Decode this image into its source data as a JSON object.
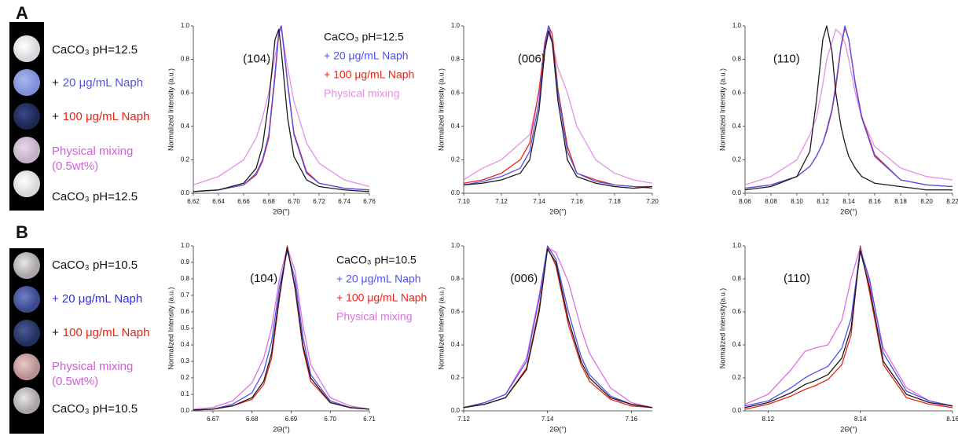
{
  "rows": [
    {
      "letter": "A",
      "samples": [
        {
          "lines": [
            "CaCO₃ pH=12.5"
          ]
        },
        {
          "prefix": "+",
          "lines": [
            "20 μg/mL Naph"
          ]
        },
        {
          "prefix": "+",
          "lines": [
            "100 μg/mL Naph"
          ]
        },
        {
          "lines": [
            "Physical mixing",
            "(0.5wt%)"
          ]
        },
        {
          "lines": [
            "CaCO₃ pH=12.5"
          ]
        }
      ]
    },
    {
      "letter": "B",
      "samples": [
        {
          "lines": [
            "CaCO₃ pH=10.5"
          ]
        },
        {
          "lines": [
            "+ 20 μg/mL Naph"
          ]
        },
        {
          "prefix": "+",
          "lines": [
            "100 μg/mL Naph"
          ]
        },
        {
          "lines": [
            "Physical mixing",
            "(0.5wt%)"
          ]
        },
        {
          "lines": [
            "CaCO₃ pH=10.5"
          ]
        }
      ]
    }
  ],
  "chart_data": [
    {
      "type": "line",
      "annotation": "(104)",
      "x_label": "2Θ(°)",
      "y_label": "Normalized Intensity (a.u.)",
      "xlim": [
        6.62,
        6.76
      ],
      "xticks": [
        6.62,
        6.64,
        6.66,
        6.68,
        {
          "value": 6.7,
          "label": "6.70"
        },
        6.72,
        6.74,
        6.76
      ],
      "ylim": [
        0,
        1
      ],
      "yticks": [
        {
          "value": 0,
          "label": "0.0"
        },
        0.2,
        0.4,
        0.6,
        0.8,
        {
          "value": 1,
          "label": "1.0"
        }
      ],
      "x": [
        6.62,
        6.64,
        6.66,
        6.67,
        6.675,
        6.68,
        6.685,
        6.688,
        6.69,
        6.695,
        6.7,
        6.71,
        6.72,
        6.74,
        6.76
      ],
      "series": [
        {
          "name": "CaCO₃ pH=12.5",
          "color": "#1a1a1a",
          "values": [
            0.01,
            0.02,
            0.06,
            0.15,
            0.28,
            0.55,
            0.92,
            0.98,
            0.85,
            0.45,
            0.22,
            0.08,
            0.04,
            0.02,
            0.01
          ]
        },
        {
          "name": "+ 20 μg/mL Naph",
          "color": "#5050f0",
          "values": [
            0.01,
            0.02,
            0.05,
            0.12,
            0.2,
            0.35,
            0.72,
            0.97,
            1.0,
            0.65,
            0.35,
            0.12,
            0.06,
            0.03,
            0.02
          ]
        },
        {
          "name": "+ 100 μg/mL Naph",
          "color": "#e82318",
          "values": [
            0.01,
            0.02,
            0.05,
            0.11,
            0.19,
            0.33,
            0.7,
            0.96,
            1.0,
            0.66,
            0.36,
            0.13,
            0.06,
            0.03,
            0.02
          ]
        },
        {
          "name": "Physical mixing",
          "color": "#e590e8",
          "values": [
            0.05,
            0.1,
            0.2,
            0.33,
            0.45,
            0.6,
            0.82,
            0.95,
            0.98,
            0.75,
            0.55,
            0.3,
            0.18,
            0.08,
            0.04
          ]
        }
      ]
    },
    {
      "type": "line",
      "annotation": "(006)",
      "x_label": "2Θ(°)",
      "y_label": "Normalized Intensity (a.u.)",
      "xlim": [
        7.1,
        7.2
      ],
      "xticks": [
        {
          "value": 7.1,
          "label": "7.10"
        },
        7.12,
        7.14,
        7.16,
        7.18,
        {
          "value": 7.2,
          "label": "7.20"
        }
      ],
      "ylim": [
        0,
        1
      ],
      "yticks": [
        {
          "value": 0,
          "label": "0.0"
        },
        0.2,
        0.4,
        0.6,
        0.8,
        {
          "value": 1,
          "label": "1.0"
        }
      ],
      "x": [
        7.1,
        7.11,
        7.12,
        7.13,
        7.135,
        7.14,
        7.143,
        7.145,
        7.147,
        7.15,
        7.155,
        7.16,
        7.17,
        7.18,
        7.19,
        7.2
      ],
      "series": [
        {
          "color": "#1a1a1a",
          "values": [
            0.05,
            0.06,
            0.08,
            0.12,
            0.2,
            0.5,
            0.85,
            0.97,
            0.9,
            0.55,
            0.2,
            0.1,
            0.06,
            0.04,
            0.03,
            0.04
          ]
        },
        {
          "color": "#5050f0",
          "values": [
            0.05,
            0.07,
            0.1,
            0.15,
            0.25,
            0.55,
            0.88,
            1.0,
            0.9,
            0.6,
            0.25,
            0.12,
            0.07,
            0.05,
            0.04,
            0.04
          ]
        },
        {
          "color": "#e82318",
          "values": [
            0.06,
            0.08,
            0.12,
            0.2,
            0.3,
            0.62,
            0.9,
            1.0,
            0.95,
            0.62,
            0.28,
            0.12,
            0.08,
            0.05,
            0.04,
            0.03
          ]
        },
        {
          "color": "#e590e8",
          "values": [
            0.08,
            0.15,
            0.2,
            0.3,
            0.35,
            0.6,
            0.85,
            0.95,
            0.9,
            0.75,
            0.6,
            0.4,
            0.2,
            0.12,
            0.08,
            0.06
          ]
        }
      ]
    },
    {
      "type": "line",
      "annotation": "(110)",
      "x_label": "2Θ(°)",
      "y_label": "Normalized Intensity (a.u.)",
      "xlim": [
        8.06,
        8.22
      ],
      "xticks": [
        8.06,
        8.08,
        {
          "value": 8.1,
          "label": "8.10"
        },
        8.12,
        8.14,
        8.16,
        8.18,
        {
          "value": 8.2,
          "label": "8.20"
        },
        8.22
      ],
      "ylim": [
        0,
        1
      ],
      "yticks": [
        {
          "value": 0,
          "label": "0.0"
        },
        0.2,
        0.4,
        0.6,
        0.8,
        {
          "value": 1,
          "label": "1.0"
        }
      ],
      "x": [
        8.06,
        8.08,
        8.1,
        8.11,
        8.115,
        8.12,
        8.123,
        8.127,
        8.13,
        8.134,
        8.137,
        8.14,
        8.145,
        8.15,
        8.16,
        8.18,
        8.2,
        8.22
      ],
      "series": [
        {
          "color": "#1a1a1a",
          "values": [
            0.02,
            0.04,
            0.1,
            0.25,
            0.55,
            0.92,
            1.0,
            0.85,
            0.6,
            0.4,
            0.3,
            0.22,
            0.15,
            0.1,
            0.06,
            0.04,
            0.02,
            0.02
          ]
        },
        {
          "color": "#5050f0",
          "values": [
            0.03,
            0.05,
            0.1,
            0.16,
            0.22,
            0.3,
            0.38,
            0.5,
            0.65,
            0.88,
            1.0,
            0.92,
            0.65,
            0.45,
            0.22,
            0.08,
            0.05,
            0.04
          ]
        },
        {
          "color": "#e82318",
          "values": [
            0.03,
            0.05,
            0.1,
            0.16,
            0.22,
            0.3,
            0.37,
            0.49,
            0.63,
            0.87,
            0.99,
            0.92,
            0.66,
            0.46,
            0.23,
            0.08,
            0.05,
            0.04
          ]
        },
        {
          "color": "#e590e8",
          "values": [
            0.05,
            0.1,
            0.2,
            0.35,
            0.45,
            0.65,
            0.8,
            0.9,
            0.98,
            0.95,
            0.9,
            0.8,
            0.6,
            0.45,
            0.28,
            0.15,
            0.1,
            0.08
          ]
        }
      ]
    },
    {
      "type": "line",
      "annotation": "(104)",
      "x_label": "2Θ(°)",
      "y_label": "Normalized Intensity (a.u.)",
      "xlim": [
        6.665,
        6.71
      ],
      "xticks": [
        6.67,
        6.68,
        6.69,
        {
          "value": 6.7,
          "label": "6.70"
        },
        6.71
      ],
      "ylim": [
        0,
        1
      ],
      "yticks": [
        {
          "value": 0,
          "label": "0.0"
        },
        0.1,
        0.2,
        0.3,
        0.4,
        0.5,
        0.6,
        0.7,
        0.8,
        0.9,
        {
          "value": 1,
          "label": "1.0"
        }
      ],
      "x": [
        6.665,
        6.67,
        6.675,
        6.68,
        6.683,
        6.685,
        6.687,
        6.689,
        6.691,
        6.693,
        6.695,
        6.7,
        6.705,
        6.71
      ],
      "series": [
        {
          "name": "CaCO₃ pH=10.5",
          "color": "#1a1a1a",
          "values": [
            0.005,
            0.01,
            0.03,
            0.08,
            0.18,
            0.35,
            0.7,
            0.99,
            0.75,
            0.4,
            0.2,
            0.05,
            0.02,
            0.01
          ]
        },
        {
          "name": "+ 20 μg/mL Naph",
          "color": "#5050f0",
          "values": [
            0.005,
            0.01,
            0.04,
            0.11,
            0.24,
            0.42,
            0.75,
            0.97,
            0.8,
            0.45,
            0.22,
            0.06,
            0.02,
            0.01
          ]
        },
        {
          "name": "+ 100 μg/mL Naph",
          "color": "#e82318",
          "values": [
            0.005,
            0.01,
            0.03,
            0.07,
            0.16,
            0.32,
            0.68,
            1.0,
            0.74,
            0.38,
            0.18,
            0.05,
            0.02,
            0.01
          ]
        },
        {
          "name": "Physical mixing",
          "color": "#e070e0",
          "values": [
            0.01,
            0.02,
            0.06,
            0.17,
            0.32,
            0.5,
            0.8,
            0.99,
            0.85,
            0.52,
            0.28,
            0.08,
            0.03,
            0.01
          ]
        }
      ]
    },
    {
      "type": "line",
      "annotation": "(006)",
      "x_label": "2Θ(°)",
      "y_label": "Normalized Intensity (a.u.)",
      "xlim": [
        7.12,
        7.165
      ],
      "xticks": [
        7.12,
        7.14,
        7.16
      ],
      "ylim": [
        0,
        1
      ],
      "yticks": [
        {
          "value": 0,
          "label": "0.0"
        },
        0.2,
        0.4,
        0.6,
        0.8,
        {
          "value": 1,
          "label": "1.0"
        }
      ],
      "x": [
        7.12,
        7.125,
        7.13,
        7.135,
        7.138,
        7.14,
        7.142,
        7.145,
        7.148,
        7.15,
        7.155,
        7.16,
        7.165
      ],
      "series": [
        {
          "color": "#1a1a1a",
          "values": [
            0.02,
            0.04,
            0.08,
            0.25,
            0.6,
            0.98,
            0.9,
            0.55,
            0.3,
            0.2,
            0.08,
            0.04,
            0.02
          ]
        },
        {
          "color": "#5050f0",
          "values": [
            0.02,
            0.05,
            0.1,
            0.3,
            0.68,
            1.0,
            0.92,
            0.6,
            0.33,
            0.22,
            0.09,
            0.04,
            0.02
          ]
        },
        {
          "color": "#e82318",
          "values": [
            0.02,
            0.04,
            0.08,
            0.26,
            0.62,
            0.99,
            0.88,
            0.52,
            0.28,
            0.18,
            0.07,
            0.03,
            0.02
          ]
        },
        {
          "color": "#e070e0",
          "values": [
            0.02,
            0.05,
            0.1,
            0.32,
            0.7,
            0.99,
            0.96,
            0.78,
            0.5,
            0.35,
            0.14,
            0.05,
            0.02
          ]
        }
      ]
    },
    {
      "type": "line",
      "annotation": "(110)",
      "x_label": "2Θ(°)",
      "y_label": "Normalized Intensity(a.u.)",
      "xlim": [
        8.115,
        8.16
      ],
      "xticks": [
        8.12,
        8.14,
        8.16
      ],
      "ylim": [
        0,
        1
      ],
      "yticks": [
        {
          "value": 0,
          "label": "0.0"
        },
        0.2,
        0.4,
        0.6,
        0.8,
        {
          "value": 1,
          "label": "1.0"
        }
      ],
      "x": [
        8.115,
        8.12,
        8.125,
        8.128,
        8.13,
        8.133,
        8.136,
        8.138,
        8.14,
        8.142,
        8.145,
        8.15,
        8.155,
        8.16
      ],
      "series": [
        {
          "color": "#1a1a1a",
          "values": [
            0.02,
            0.05,
            0.11,
            0.16,
            0.18,
            0.22,
            0.32,
            0.5,
            0.97,
            0.75,
            0.3,
            0.1,
            0.05,
            0.03
          ]
        },
        {
          "color": "#5050f0",
          "values": [
            0.03,
            0.06,
            0.14,
            0.2,
            0.23,
            0.27,
            0.38,
            0.56,
            0.98,
            0.8,
            0.35,
            0.12,
            0.06,
            0.03
          ]
        },
        {
          "color": "#e82318",
          "values": [
            0.01,
            0.04,
            0.09,
            0.13,
            0.15,
            0.19,
            0.28,
            0.46,
            1.0,
            0.72,
            0.28,
            0.08,
            0.04,
            0.02
          ]
        },
        {
          "color": "#e070e0",
          "values": [
            0.04,
            0.1,
            0.25,
            0.36,
            0.38,
            0.4,
            0.55,
            0.8,
            0.99,
            0.78,
            0.38,
            0.14,
            0.06,
            0.03
          ]
        }
      ]
    }
  ]
}
